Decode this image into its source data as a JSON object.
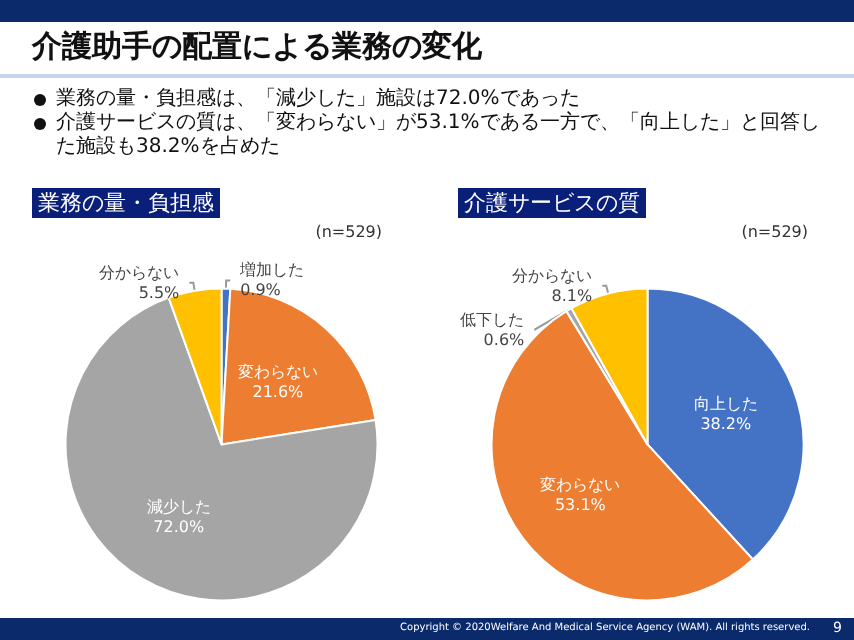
{
  "chart_data": [
    {
      "type": "other",
      "title": "介護助手の配置による業務の変化",
      "annotations": [
        "業務の量・負担感は、「減少した」施設は72.0%であった",
        "介護サービスの質は、「変わらない」が53.1%である一方で、「向上した」と回答した施設も38.2%を占めた",
        "Copyright © 2020Welfare And Medical Service Agency (WAM). All rights reserved.",
        "9"
      ]
    },
    {
      "type": "pie",
      "title": "業務の量・負担感",
      "annotations": [
        "(n=529)"
      ],
      "categories": [
        "増加した",
        "変わらない",
        "減少した",
        "分からない"
      ],
      "values": [
        0.9,
        21.6,
        72.0,
        5.5
      ],
      "colors": [
        "#4472c4",
        "#ed7d31",
        "#a5a5a5",
        "#ffc000"
      ],
      "value_labels": [
        "0.9%",
        "21.6%",
        "72.0%",
        "5.5%"
      ]
    },
    {
      "type": "pie",
      "title": "介護サービスの質",
      "annotations": [
        "(n=529)"
      ],
      "categories": [
        "向上した",
        "変わらない",
        "低下した",
        "分からない"
      ],
      "values": [
        38.2,
        53.1,
        0.6,
        8.1
      ],
      "colors": [
        "#4472c4",
        "#ed7d31",
        "#a5a5a5",
        "#ffc000"
      ],
      "value_labels": [
        "38.2%",
        "53.1%",
        "0.6%",
        "8.1%"
      ]
    }
  ]
}
